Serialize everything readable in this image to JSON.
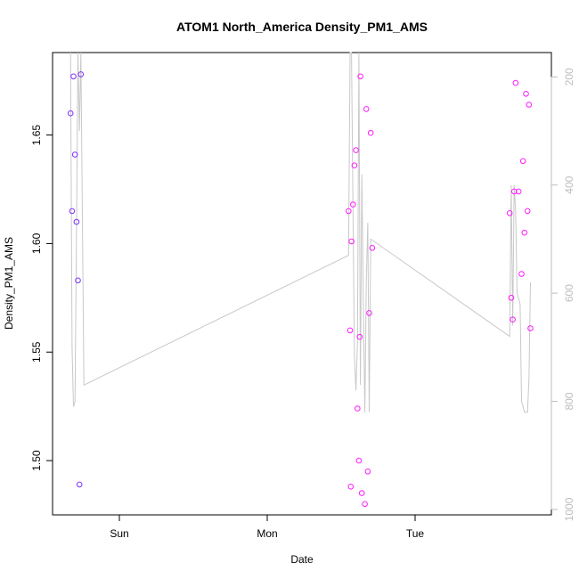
{
  "chart_data": {
    "type": "scatter",
    "title": "ATOM1 North_America Density_PM1_AMS",
    "xlabel": "Date",
    "ylabel": "Density_PM1_AMS",
    "x_ticks": [
      "Sun",
      "Mon",
      "Tue"
    ],
    "y_ticks": [
      "1.50",
      "1.55",
      "1.60",
      "1.65"
    ],
    "y2_ticks": [
      "200",
      "400",
      "600",
      "800",
      "1000"
    ],
    "ylim": [
      1.475,
      1.688
    ],
    "y2lim": [
      1010,
      155
    ],
    "colors": {
      "early_points": "#7b2fff",
      "later_points": "#ff1aff",
      "line": "#c8c8c8",
      "right_axis": "#bdbdbd"
    },
    "points": [
      {
        "x": -0.33,
        "y": 1.66,
        "group": "early"
      },
      {
        "x": -0.32,
        "y": 1.615,
        "group": "early"
      },
      {
        "x": -0.31,
        "y": 1.677,
        "group": "early"
      },
      {
        "x": -0.3,
        "y": 1.641,
        "group": "early"
      },
      {
        "x": -0.29,
        "y": 1.61,
        "group": "early"
      },
      {
        "x": -0.28,
        "y": 1.583,
        "group": "early"
      },
      {
        "x": -0.27,
        "y": 1.489,
        "group": "early"
      },
      {
        "x": -0.26,
        "y": 1.678,
        "group": "early"
      },
      {
        "x": 1.55,
        "y": 1.615,
        "group": "later"
      },
      {
        "x": 1.56,
        "y": 1.56,
        "group": "later"
      },
      {
        "x": 1.565,
        "y": 1.488,
        "group": "later"
      },
      {
        "x": 1.57,
        "y": 1.601,
        "group": "later"
      },
      {
        "x": 1.58,
        "y": 1.618,
        "group": "later"
      },
      {
        "x": 1.59,
        "y": 1.636,
        "group": "later"
      },
      {
        "x": 1.6,
        "y": 1.643,
        "group": "later"
      },
      {
        "x": 1.61,
        "y": 1.524,
        "group": "later"
      },
      {
        "x": 1.62,
        "y": 1.5,
        "group": "later"
      },
      {
        "x": 1.625,
        "y": 1.557,
        "group": "later"
      },
      {
        "x": 1.63,
        "y": 1.677,
        "group": "later"
      },
      {
        "x": 1.64,
        "y": 1.485,
        "group": "later"
      },
      {
        "x": 1.66,
        "y": 1.48,
        "group": "later"
      },
      {
        "x": 1.67,
        "y": 1.662,
        "group": "later"
      },
      {
        "x": 1.68,
        "y": 1.495,
        "group": "later"
      },
      {
        "x": 1.69,
        "y": 1.568,
        "group": "later"
      },
      {
        "x": 1.7,
        "y": 1.651,
        "group": "later"
      },
      {
        "x": 1.71,
        "y": 1.598,
        "group": "later"
      },
      {
        "x": 2.64,
        "y": 1.614,
        "group": "later"
      },
      {
        "x": 2.65,
        "y": 1.575,
        "group": "later"
      },
      {
        "x": 2.66,
        "y": 1.565,
        "group": "later"
      },
      {
        "x": 2.67,
        "y": 1.624,
        "group": "later"
      },
      {
        "x": 2.68,
        "y": 1.674,
        "group": "later"
      },
      {
        "x": 2.7,
        "y": 1.624,
        "group": "later"
      },
      {
        "x": 2.72,
        "y": 1.586,
        "group": "later"
      },
      {
        "x": 2.73,
        "y": 1.638,
        "group": "later"
      },
      {
        "x": 2.74,
        "y": 1.605,
        "group": "later"
      },
      {
        "x": 2.75,
        "y": 1.669,
        "group": "later"
      },
      {
        "x": 2.76,
        "y": 1.615,
        "group": "later"
      },
      {
        "x": 2.77,
        "y": 1.664,
        "group": "later"
      },
      {
        "x": 2.78,
        "y": 1.561,
        "group": "later"
      }
    ],
    "line_series": {
      "axis": "right",
      "points": [
        [
          -0.33,
          80
        ],
        [
          -0.32,
          700
        ],
        [
          -0.31,
          810
        ],
        [
          -0.3,
          800
        ],
        [
          -0.29,
          480
        ],
        [
          -0.28,
          120
        ],
        [
          -0.27,
          300
        ],
        [
          -0.26,
          60
        ],
        [
          -0.24,
          770
        ],
        [
          1.55,
          530
        ],
        [
          1.56,
          60
        ],
        [
          1.57,
          40
        ],
        [
          1.58,
          450
        ],
        [
          1.59,
          720
        ],
        [
          1.6,
          780
        ],
        [
          1.61,
          690
        ],
        [
          1.62,
          120
        ],
        [
          1.63,
          770
        ],
        [
          1.64,
          380
        ],
        [
          1.65,
          620
        ],
        [
          1.66,
          820
        ],
        [
          1.67,
          580
        ],
        [
          1.68,
          470
        ],
        [
          1.69,
          820
        ],
        [
          1.7,
          500
        ],
        [
          2.64,
          680
        ],
        [
          2.65,
          400
        ],
        [
          2.66,
          660
        ],
        [
          2.67,
          400
        ],
        [
          2.68,
          450
        ],
        [
          2.69,
          600
        ],
        [
          2.71,
          620
        ],
        [
          2.72,
          800
        ],
        [
          2.74,
          820
        ],
        [
          2.76,
          820
        ],
        [
          2.77,
          760
        ],
        [
          2.78,
          580
        ]
      ]
    }
  }
}
